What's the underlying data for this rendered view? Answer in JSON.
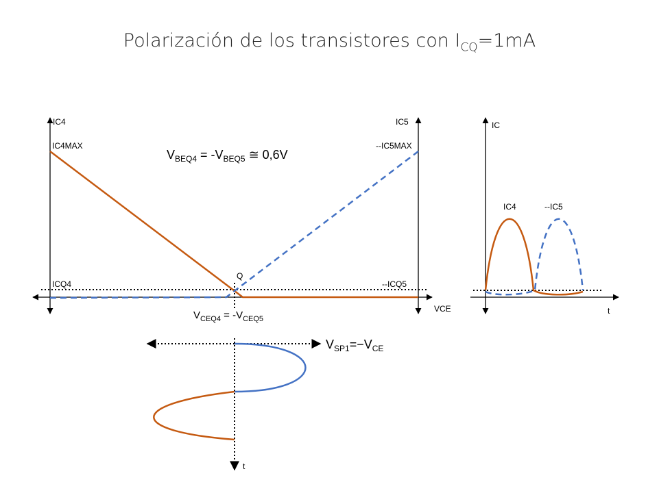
{
  "title": {
    "main": "Polarización de los transistores con I",
    "sub": "CQ",
    "tail": "=1mA"
  },
  "colors": {
    "ic4": "#c55a11",
    "ic5": "#4472c4",
    "axis": "#000000"
  },
  "load_line": {
    "y_left_label": "IC4",
    "y_right_label": "IC5",
    "x_label": "VCE",
    "ic4max_label": "IC4MAX",
    "ic5max_label": "--IC5MAX",
    "icq4_label": "ICQ4",
    "icq5_label": "--ICQ5",
    "q_label": "Q",
    "vbe_eq": {
      "a": "V",
      "a_sub": "BEQ4",
      "b": " = -V",
      "b_sub": "BEQ5",
      "c": " ≅ 0,6V"
    },
    "vce_eq": {
      "a": "V",
      "a_sub": "CEQ4",
      "b": " = -V",
      "b_sub": "CEQ5"
    }
  },
  "current_plot": {
    "y_label": "IC",
    "x_label": "t",
    "ic4_label": "IC4",
    "ic5_label": "--IC5"
  },
  "voltage_plot": {
    "t_label": "t",
    "vsp": {
      "a": "V",
      "a_sub": "SP1",
      "b": "=−V",
      "b_sub": "CE"
    }
  }
}
